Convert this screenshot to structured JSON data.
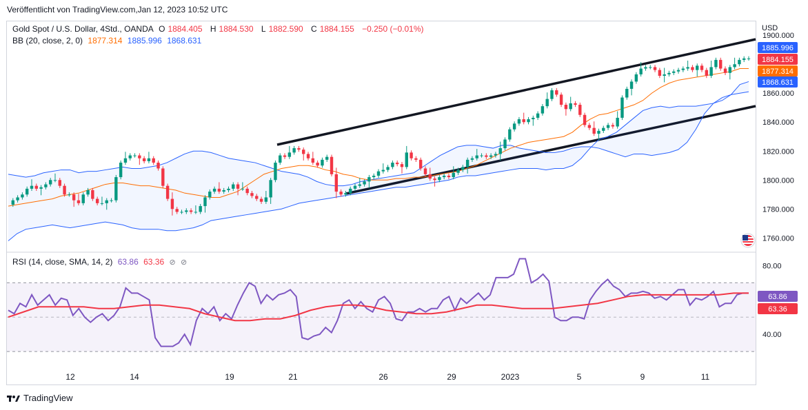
{
  "header": {
    "published": "Veröffentlicht von TradingView.com,Jan 12, 2023 10:52 UTC"
  },
  "main_legend": {
    "symbol": "Gold Spot / U.S. Dollar, 4Std., OANDA",
    "o_label": "O",
    "o_val": "1884.405",
    "h_label": "H",
    "h_val": "1884.530",
    "l_label": "L",
    "l_val": "1882.590",
    "c_label": "C",
    "c_val": "1884.155",
    "change": "−0.250 (−0.01%)"
  },
  "bb_legend": {
    "label": "BB (20, close, 2, 0)",
    "basis": "1877.314",
    "upper": "1885.996",
    "lower": "1868.631"
  },
  "rsi_legend": {
    "label": "RSI (14, close, SMA, 14, 2)",
    "rsi": "63.86",
    "sma": "63.36"
  },
  "footer": {
    "brand": "TradingView"
  },
  "colors": {
    "up": "#089981",
    "down": "#f23645",
    "bb_band": "#2962ff",
    "bb_basis": "#ff6d00",
    "rsi": "#7e57c2",
    "rsi_ma": "#f23645",
    "trend": "#131722"
  },
  "icons": {
    "flag": "us-flag-icon",
    "eye": "eye-off-icon"
  },
  "chart_data": [
    {
      "type": "candlestick",
      "title": "Gold Spot / U.S. Dollar, 4Std., OANDA",
      "currency": "USD",
      "y_ticks": [
        "1760.000",
        "1780.000",
        "1800.000",
        "1820.000",
        "1840.000",
        "1860.000",
        "1900.000"
      ],
      "ylim": [
        1753,
        1902
      ],
      "x_ticks": [
        "12",
        "14",
        "19",
        "21",
        "26",
        "29",
        "2023",
        "5",
        "9",
        "11"
      ],
      "last_labels": {
        "bb_upper": "1885.996",
        "close": "1884.155",
        "bb_basis": "1877.314",
        "bb_lower": "1868.631"
      },
      "close": [
        1783,
        1786,
        1788,
        1790,
        1794,
        1796,
        1794,
        1795,
        1797,
        1800,
        1800,
        1796,
        1790,
        1790,
        1786,
        1784,
        1790,
        1793,
        1787,
        1784,
        1784,
        1786,
        1786,
        1802,
        1812,
        1815,
        1817,
        1817,
        1815,
        1813,
        1815,
        1812,
        1808,
        1796,
        1787,
        1780,
        1778,
        1778,
        1779,
        1778,
        1778,
        1782,
        1788,
        1792,
        1794,
        1792,
        1793,
        1794,
        1797,
        1794,
        1794,
        1791,
        1789,
        1787,
        1785,
        1788,
        1800,
        1812,
        1817,
        1816,
        1819,
        1822,
        1821,
        1818,
        1815,
        1812,
        1810,
        1814,
        1816,
        1804,
        1792,
        1790,
        1791,
        1794,
        1796,
        1797,
        1799,
        1802,
        1803,
        1806,
        1807,
        1809,
        1812,
        1811,
        1809,
        1819,
        1815,
        1814,
        1808,
        1804,
        1801,
        1800,
        1802,
        1803,
        1802,
        1805,
        1807,
        1809,
        1814,
        1815,
        1817,
        1817,
        1816,
        1817,
        1818,
        1822,
        1828,
        1835,
        1839,
        1842,
        1840,
        1842,
        1843,
        1846,
        1851,
        1856,
        1862,
        1859,
        1852,
        1849,
        1853,
        1852,
        1845,
        1838,
        1836,
        1832,
        1834,
        1836,
        1838,
        1837,
        1843,
        1857,
        1863,
        1868,
        1873,
        1877,
        1878,
        1878,
        1876,
        1872,
        1873,
        1874,
        1875,
        1876,
        1877,
        1878,
        1876,
        1879,
        1876,
        1872,
        1878,
        1883,
        1877,
        1874,
        1878,
        1880,
        1883,
        1884,
        1884
      ],
      "bb_upper": [
        1804,
        1803,
        1802,
        1803,
        1805,
        1806,
        1807,
        1807,
        1805,
        1806,
        1806,
        1807,
        1808,
        1809,
        1808,
        1808,
        1809,
        1810,
        1812,
        1815,
        1818,
        1820,
        1820,
        1819,
        1817,
        1815,
        1814,
        1813,
        1812,
        1810,
        1808,
        1806,
        1805,
        1804,
        1802,
        1799,
        1797,
        1796,
        1796,
        1797,
        1799,
        1800,
        1801,
        1802,
        1803,
        1804,
        1805,
        1809,
        1813,
        1817,
        1820,
        1823,
        1824,
        1824,
        1823,
        1822,
        1824,
        1824,
        1822,
        1821,
        1820,
        1819,
        1819,
        1820,
        1822,
        1823,
        1823,
        1822,
        1820,
        1818,
        1816,
        1818,
        1818,
        1817,
        1818,
        1819,
        1821,
        1826,
        1835,
        1846,
        1853,
        1857,
        1859,
        1860,
        1861,
        1862,
        1862,
        1862,
        1858,
        1855,
        1854,
        1854,
        1856,
        1861,
        1867,
        1873,
        1878,
        1881,
        1884,
        1885,
        1886,
        1887,
        1889,
        1890,
        1890,
        1889,
        1887,
        1886,
        1886
      ],
      "bb_lower": [
        1758,
        1763,
        1766,
        1767,
        1768,
        1769,
        1768,
        1767,
        1768,
        1769,
        1770,
        1771,
        1770,
        1769,
        1767,
        1766,
        1766,
        1766,
        1765,
        1765,
        1766,
        1767,
        1769,
        1772,
        1773,
        1774,
        1775,
        1776,
        1777,
        1778,
        1779,
        1780,
        1782,
        1784,
        1785,
        1786,
        1787,
        1788,
        1789,
        1790,
        1791,
        1792,
        1793,
        1794,
        1795,
        1795,
        1796,
        1797,
        1798,
        1799,
        1800,
        1802,
        1803,
        1803,
        1804,
        1805,
        1806,
        1807,
        1808,
        1808,
        1808,
        1807,
        1808,
        1808,
        1810,
        1815,
        1822,
        1828,
        1830,
        1833,
        1838,
        1843,
        1848,
        1850,
        1851,
        1850,
        1851,
        1851,
        1851,
        1852,
        1853,
        1855,
        1859,
        1866,
        1868
      ],
      "bb_basis": [
        1782,
        1783,
        1784,
        1785,
        1786,
        1787,
        1789,
        1790,
        1791,
        1793,
        1795,
        1797,
        1798,
        1798,
        1797,
        1796,
        1796,
        1795,
        1794,
        1793,
        1791,
        1790,
        1789,
        1788,
        1788,
        1790,
        1792,
        1796,
        1800,
        1804,
        1806,
        1808,
        1809,
        1810,
        1810,
        1809,
        1807,
        1806,
        1804,
        1803,
        1801,
        1800,
        1800,
        1800,
        1801,
        1801,
        1802,
        1802,
        1803,
        1804,
        1805,
        1806,
        1808,
        1810,
        1813,
        1816,
        1819,
        1822,
        1824,
        1826,
        1827,
        1828,
        1829,
        1830,
        1833,
        1838,
        1842,
        1845,
        1846,
        1848,
        1850,
        1852,
        1855,
        1860,
        1864,
        1867,
        1869,
        1870,
        1871,
        1872,
        1873,
        1874,
        1875,
        1877,
        1877
      ]
    },
    {
      "type": "line",
      "title": "RSI (14, close, SMA, 14, 2)",
      "y_ticks": [
        "40.00",
        "80.00"
      ],
      "ylim": [
        22,
        85
      ],
      "bands": [
        30,
        50,
        70
      ],
      "last_labels": {
        "rsi": "63.86",
        "sma": "63.36"
      },
      "series": [
        {
          "name": "RSI",
          "values": [
            54,
            52,
            58,
            56,
            63,
            57,
            60,
            63,
            57,
            61,
            60,
            51,
            55,
            50,
            47,
            50,
            52,
            48,
            51,
            56,
            67,
            64,
            64,
            62,
            60,
            38,
            33,
            33,
            33,
            35,
            40,
            34,
            48,
            55,
            52,
            56,
            48,
            52,
            49,
            57,
            64,
            70,
            68,
            58,
            63,
            60,
            63,
            64,
            66,
            62,
            38,
            37,
            39,
            40,
            44,
            41,
            48,
            58,
            60,
            55,
            59,
            55,
            53,
            60,
            62,
            58,
            49,
            48,
            53,
            53,
            55,
            53,
            55,
            55,
            60,
            62,
            54,
            61,
            58,
            61,
            64,
            60,
            63,
            73,
            73,
            73,
            75,
            84,
            84,
            70,
            72,
            75,
            71,
            50,
            48,
            48,
            50,
            50,
            49,
            60,
            65,
            69,
            72,
            68,
            66,
            62,
            64,
            64,
            65,
            64,
            61,
            62,
            60,
            63,
            66,
            66,
            57,
            61,
            60,
            62,
            65,
            56,
            58,
            58,
            63,
            64,
            64
          ]
        },
        {
          "name": "RSI-based MA",
          "values": [
            50,
            53,
            56,
            56,
            56,
            56,
            55,
            55,
            56,
            57,
            57,
            56,
            55,
            52,
            50,
            48,
            48,
            49,
            49,
            51,
            54,
            56,
            57,
            57,
            56,
            54,
            53,
            52,
            52,
            53,
            55,
            57,
            57,
            56,
            55,
            55,
            55,
            56,
            57,
            58,
            60,
            62,
            63,
            63,
            63,
            63,
            63,
            63,
            64,
            64
          ]
        }
      ]
    }
  ]
}
